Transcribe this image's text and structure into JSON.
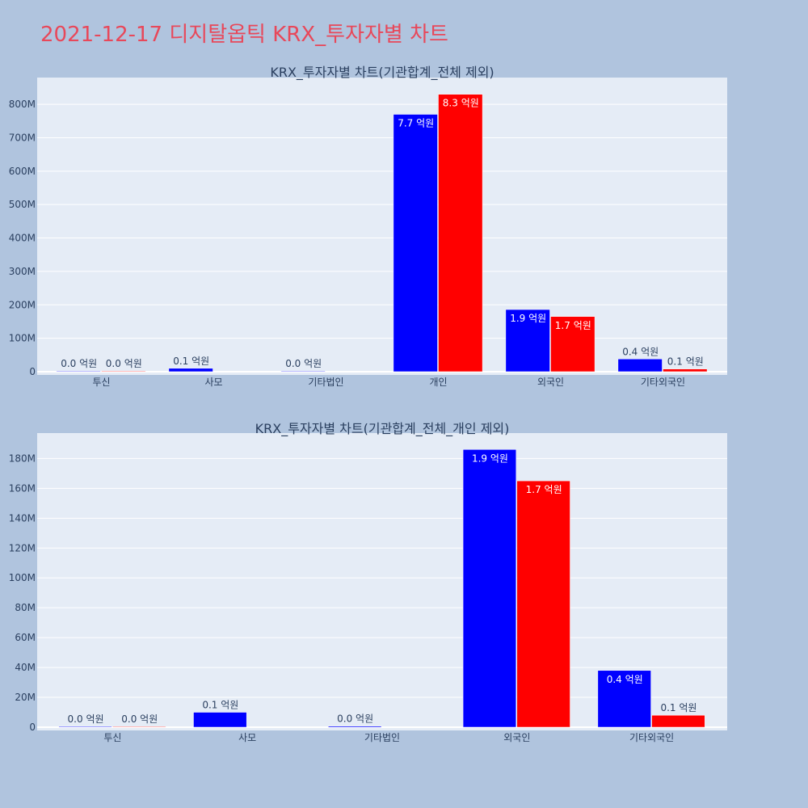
{
  "page_title": "2021-12-17 디지탈옵틱 KRX_투자자별 차트",
  "colors": {
    "background": "#b0c4de",
    "plot_bg": "#e5ecf6",
    "grid": "#ffffff",
    "title": "#e8485a",
    "text": "#2a3f5f",
    "series_1": "#0000ff",
    "series_2": "#ff0000"
  },
  "chart_data": [
    {
      "type": "bar",
      "title": "KRX_투자자별 차트(기관합계_전체 제외)",
      "categories": [
        "투신",
        "사모",
        "기타법인",
        "개인",
        "외국인",
        "기타외국인"
      ],
      "series": [
        {
          "color": "#0000ff",
          "values": [
            500000,
            10000000,
            700000,
            770000000,
            186000000,
            38000000
          ],
          "labels": [
            "0.0 억원",
            "0.1 억원",
            "0.0 억원",
            "7.7 억원",
            "1.9 억원",
            "0.4 억원"
          ]
        },
        {
          "color": "#ff0000",
          "values": [
            400000,
            null,
            null,
            830000000,
            165000000,
            8000000
          ],
          "labels": [
            "0.0 억원",
            "",
            "",
            "8.3 억원",
            "1.7 억원",
            "0.1 억원"
          ]
        }
      ],
      "ylim": [
        0,
        880000000
      ],
      "yticks": [
        0,
        100000000,
        200000000,
        300000000,
        400000000,
        500000000,
        600000000,
        700000000,
        800000000
      ],
      "ytick_labels": [
        "0",
        "100M",
        "200M",
        "300M",
        "400M",
        "500M",
        "600M",
        "700M",
        "800M"
      ],
      "grid": true
    },
    {
      "type": "bar",
      "title": "KRX_투자자별 차트(기관합계_전체_개인 제외)",
      "categories": [
        "투신",
        "사모",
        "기타법인",
        "외국인",
        "기타외국인"
      ],
      "series": [
        {
          "color": "#0000ff",
          "values": [
            500000,
            10000000,
            700000,
            186000000,
            38000000
          ],
          "labels": [
            "0.0 억원",
            "0.1 억원",
            "0.0 억원",
            "1.9 억원",
            "0.4 억원"
          ]
        },
        {
          "color": "#ff0000",
          "values": [
            400000,
            null,
            null,
            165000000,
            8000000
          ],
          "labels": [
            "0.0 억원",
            "",
            "",
            "1.7 억원",
            "0.1 억원"
          ]
        }
      ],
      "ylim": [
        0,
        197000000
      ],
      "yticks": [
        0,
        20000000,
        40000000,
        60000000,
        80000000,
        100000000,
        120000000,
        140000000,
        160000000,
        180000000
      ],
      "ytick_labels": [
        "0",
        "20M",
        "40M",
        "60M",
        "80M",
        "100M",
        "120M",
        "140M",
        "160M",
        "180M"
      ],
      "grid": true
    }
  ]
}
